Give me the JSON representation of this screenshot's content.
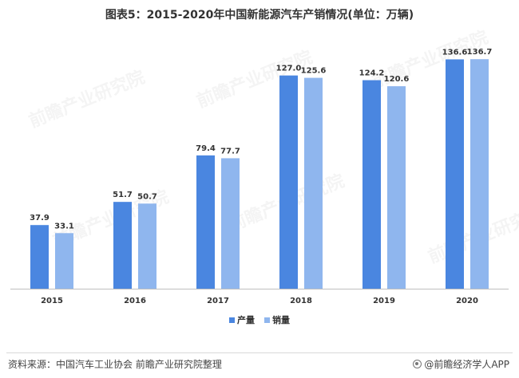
{
  "title": "图表5：2015-2020年中国新能源汽车产销情况(单位：万辆)",
  "source": "资料来源：中国汽车工业协会 前瞻产业研究院整理",
  "brand": "@前瞻经济学人APP",
  "watermark_text": "前瞻产业研究院",
  "colors": {
    "production": "#4a86e0",
    "sales": "#8fb6ee",
    "axis": "#bfbfbf",
    "text": "#333333"
  },
  "chart_data": {
    "type": "bar",
    "categories": [
      "2015",
      "2016",
      "2017",
      "2018",
      "2019",
      "2020"
    ],
    "series": [
      {
        "name": "产量",
        "values": [
          37.9,
          51.7,
          79.4,
          127.0,
          124.2,
          136.6
        ],
        "labels": [
          "37.9",
          "51.7",
          "79.4",
          "127.0",
          "124.2",
          "136.6"
        ]
      },
      {
        "name": "销量",
        "values": [
          33.1,
          50.7,
          77.7,
          125.6,
          120.6,
          136.7
        ],
        "labels": [
          "33.1",
          "50.7",
          "77.7",
          "125.6",
          "120.6",
          "136.7"
        ]
      }
    ],
    "ylim": [
      0,
      140
    ],
    "legend_position": "bottom",
    "grid": false
  }
}
